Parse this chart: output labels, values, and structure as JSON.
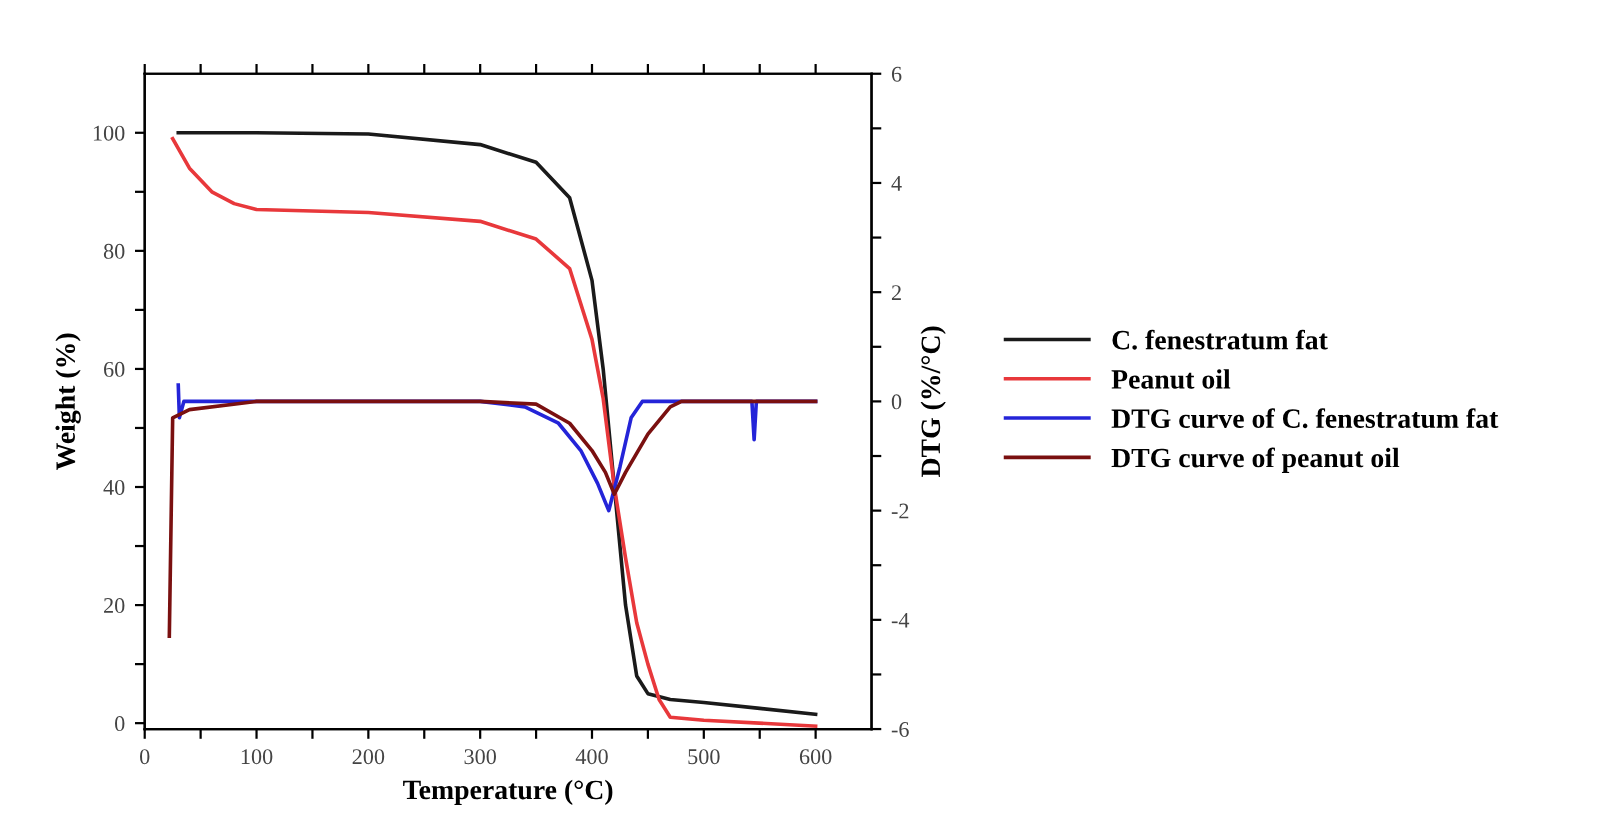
{
  "chart_data": {
    "type": "line",
    "xlabel": "Temperature (°C)",
    "ylabel": "Weight (%)",
    "y2label": "DTG (%/°C)",
    "xlim": [
      0,
      650
    ],
    "xticks": [
      0,
      {
        "value": 50,
        "label": null
      },
      100,
      {
        "value": 150,
        "label": null
      },
      200,
      {
        "value": 250,
        "label": null
      },
      300,
      {
        "value": 350,
        "label": null
      },
      400,
      {
        "value": 450,
        "label": null
      },
      500,
      {
        "value": 550,
        "label": null
      },
      600
    ],
    "ylim": [
      -1,
      110
    ],
    "yticks": [
      0,
      {
        "value": 10,
        "label": null
      },
      20,
      {
        "value": 30,
        "label": null
      },
      40,
      {
        "value": 50,
        "label": null
      },
      60,
      {
        "value": 70,
        "label": null
      },
      80,
      {
        "value": 90,
        "label": null
      },
      100
    ],
    "y2lim": [
      -6,
      6
    ],
    "y2ticks": [
      -6,
      {
        "value": -5,
        "label": null
      },
      -4,
      {
        "value": -3,
        "label": null
      },
      -2,
      {
        "value": -1,
        "label": null
      },
      0,
      {
        "value": 1,
        "label": null
      },
      2,
      {
        "value": 3,
        "label": null
      },
      4,
      {
        "value": 5,
        "label": null
      },
      6
    ],
    "legend": "right",
    "grid": false,
    "marker": "none",
    "line_style": "solid",
    "series": [
      {
        "name": "C. fenestratum fat",
        "color": "#1a1a1a",
        "x": [
          30,
          100,
          200,
          300,
          350,
          380,
          400,
          410,
          420,
          430,
          440,
          450,
          470,
          500,
          550,
          600
        ],
        "values": [
          100,
          100,
          99.8,
          98,
          95,
          89,
          75,
          60,
          40,
          20,
          8,
          5,
          4,
          3.5,
          2.5,
          1.5
        ]
      },
      {
        "name": "Peanut oil",
        "color": "#e8383b",
        "x": [
          25,
          40,
          60,
          80,
          100,
          200,
          300,
          350,
          380,
          400,
          410,
          420,
          430,
          440,
          450,
          460,
          470,
          500,
          600
        ],
        "values": [
          99,
          94,
          90,
          88,
          87,
          86.5,
          85,
          82,
          77,
          65,
          55,
          40,
          28,
          17,
          10,
          4,
          1,
          0.5,
          -0.5
        ]
      },
      {
        "name": "DTG curve of C. fenestratum fat",
        "color": "#2424d8",
        "axis": "y2",
        "x": [
          30,
          31,
          35,
          100,
          300,
          340,
          370,
          390,
          405,
          415,
          425,
          435,
          445,
          543,
          545,
          547,
          600
        ],
        "values": [
          0.3,
          -0.3,
          0,
          0,
          0,
          -0.1,
          -0.4,
          -0.9,
          -1.5,
          -2.0,
          -1.2,
          -0.3,
          0,
          0,
          -0.7,
          0,
          0
        ]
      },
      {
        "name": "DTG curve of peanut oil",
        "color": "#7a1010",
        "axis": "y2",
        "x": [
          22,
          25,
          40,
          100,
          300,
          350,
          380,
          400,
          412,
          420,
          430,
          450,
          470,
          480,
          600
        ],
        "values": [
          -4.3,
          -0.3,
          -0.15,
          0,
          0,
          -0.05,
          -0.4,
          -0.9,
          -1.3,
          -1.7,
          -1.3,
          -0.6,
          -0.1,
          0,
          0
        ]
      }
    ]
  }
}
